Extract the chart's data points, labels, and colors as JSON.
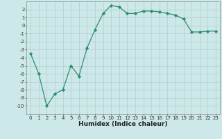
{
  "x": [
    0,
    1,
    2,
    3,
    4,
    5,
    6,
    7,
    8,
    9,
    10,
    11,
    12,
    13,
    14,
    15,
    16,
    17,
    18,
    19,
    20,
    21,
    22,
    23
  ],
  "y": [
    -3.5,
    -6.0,
    -10.0,
    -8.5,
    -8.0,
    -5.0,
    -6.3,
    -2.8,
    -0.5,
    1.5,
    2.5,
    2.3,
    1.5,
    1.5,
    1.8,
    1.8,
    1.7,
    1.5,
    1.3,
    0.8,
    -0.8,
    -0.8,
    -0.7,
    -0.7
  ],
  "xlabel": "Humidex (Indice chaleur)",
  "line_color": "#2e8b74",
  "marker": "D",
  "marker_size": 2.2,
  "bg_color": "#cce8e8",
  "grid_color": "#b8d0d0",
  "ylim": [
    -11,
    3
  ],
  "xlim": [
    -0.5,
    23.5
  ],
  "yticks": [
    2,
    1,
    0,
    -1,
    -2,
    -3,
    -4,
    -5,
    -6,
    -7,
    -8,
    -9,
    -10
  ],
  "xticks": [
    0,
    1,
    2,
    3,
    4,
    5,
    6,
    7,
    8,
    9,
    10,
    11,
    12,
    13,
    14,
    15,
    16,
    17,
    18,
    19,
    20,
    21,
    22,
    23
  ],
  "tick_labelsize": 5,
  "xlabel_fontsize": 6.5,
  "linewidth": 0.9
}
